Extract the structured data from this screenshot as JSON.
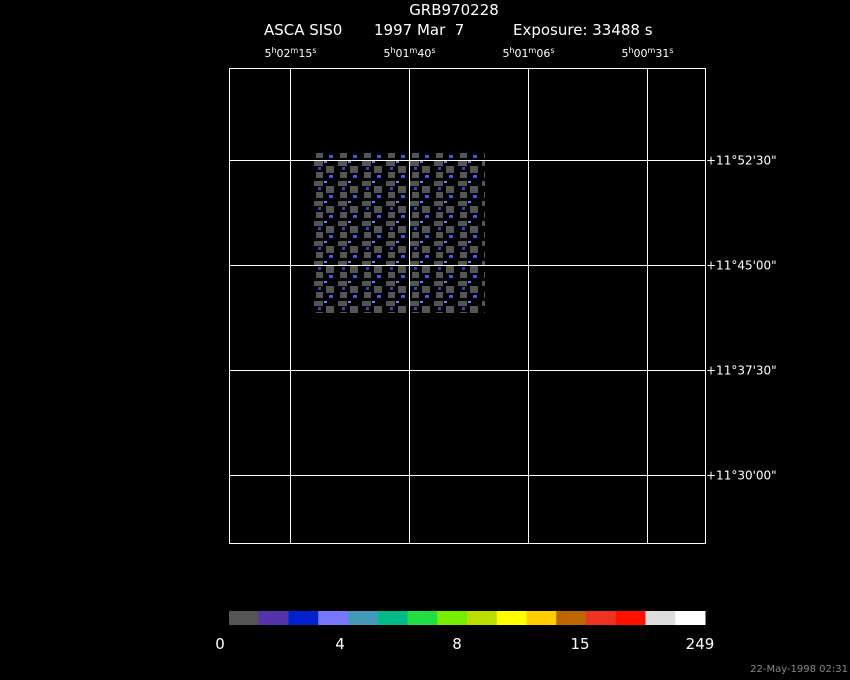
{
  "header": {
    "title": "GRB970228",
    "instrument": "ASCA SIS0",
    "date": "1997 Mar  7",
    "exposure": "Exposure: 33488 s"
  },
  "ra_labels": [
    [
      "5",
      "h",
      "02",
      "m",
      "15",
      "s"
    ],
    [
      "5",
      "h",
      "01",
      "m",
      "40",
      "s"
    ],
    [
      "5",
      "h",
      "01",
      "m",
      "06",
      "s"
    ],
    [
      "5",
      "h",
      "00",
      "m",
      "31",
      "s"
    ]
  ],
  "dec_labels": [
    "+11°52'30\"",
    "+11°45'00\"",
    "+11°37'30\"",
    "+11°30'00\""
  ],
  "colorbar": {
    "colors": [
      "#555555",
      "#5533aa",
      "#0022cc",
      "#7777ff",
      "#4499bb",
      "#00bb88",
      "#22dd44",
      "#77ee00",
      "#bbdd00",
      "#ffff00",
      "#ffcc00",
      "#bb6600",
      "#ee3322",
      "#ff1100",
      "#dddddd",
      "#ffffff"
    ],
    "labels": [
      "0",
      "4",
      "8",
      "15",
      "249"
    ]
  },
  "footer": "22-May-1998 02:31"
}
